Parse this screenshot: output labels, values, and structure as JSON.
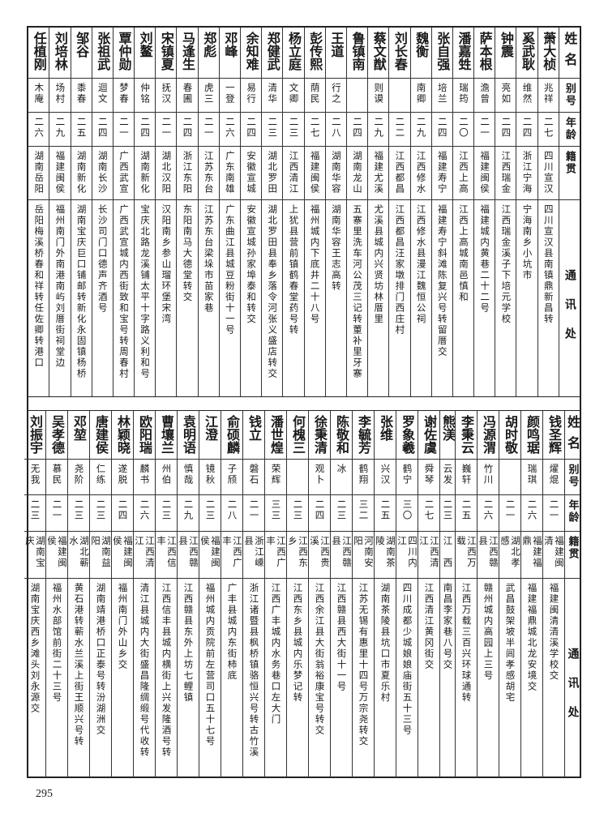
{
  "headers": {
    "name": "姓名",
    "alias": "别号",
    "age": "年龄",
    "native": "籍贯",
    "address": "通讯处"
  },
  "top_section": [
    {
      "name": "萧大桢",
      "alias": "兆祥",
      "age": "二七",
      "native": "四川宣汉",
      "address": "四川宣汉县南镇鼎新昌转"
    },
    {
      "name": "奚武耿",
      "alias": "维然",
      "age": "二四",
      "native": "浙江宁海",
      "address": "宁海南乡小坑市"
    },
    {
      "name": "钟震",
      "alias": "亮如",
      "age": "二四",
      "native": "江西瑞金",
      "address": "江西瑞金溪子下培元学校"
    },
    {
      "name": "萨本根",
      "alias": "澹曾",
      "age": "二一",
      "native": "福建闽侯",
      "address": "福建城内黄巷二十二号"
    },
    {
      "name": "潘嘉甡",
      "alias": "瑞筠",
      "age": "二〇",
      "native": "江西上高",
      "address": "江西上高城南邑慎和"
    },
    {
      "name": "张自强",
      "alias": "培兰",
      "age": "二四",
      "native": "福建寿宁",
      "address": "福建寿宁斜滩陈复兴号转留厝交"
    },
    {
      "name": "魏衡",
      "alias": "南卿",
      "age": "二九",
      "native": "江西修水",
      "address": "江西修水县漫江魏恒公祠"
    },
    {
      "name": "刘长春",
      "alias": "",
      "age": "二二",
      "native": "江西都昌",
      "address": "江西都昌汪家墩排门西庄村"
    },
    {
      "name": "蔡文猷",
      "alias": "则谟",
      "age": "二九",
      "native": "福建尤溪",
      "address": "尤溪县城内兴贤坊林厝里"
    },
    {
      "name": "鲁镇南",
      "alias": "",
      "age": "二四",
      "native": "湖南龙山",
      "address": "五寨里洗车河公茂三记转董补里牙寨"
    },
    {
      "name": "王道",
      "alias": "行之",
      "age": "二八",
      "native": "湖南华容",
      "address": "湖南华容王志高转"
    },
    {
      "name": "彭传熙",
      "alias": "荫民",
      "age": "二七",
      "native": "福建闽侯",
      "address": "福州城内下底井二十八号"
    },
    {
      "name": "杨立庭",
      "alias": "文卿",
      "age": "二三",
      "native": "江西清江",
      "address": "上犹县营前镇鹤春堂药号转"
    },
    {
      "name": "郑健武",
      "alias": "清华",
      "age": "二三",
      "native": "湖北罗田",
      "address": "湖北罗田县奉乡落令河张义盛店转交"
    },
    {
      "name": "余知难",
      "alias": "易行",
      "age": "二四",
      "native": "安徽宣城",
      "address": "安徽宣城孙家埠泰和转交"
    },
    {
      "name": "邓峰",
      "alias": "一登",
      "age": "二六",
      "native": "广东南雄",
      "address": "广东曲江县城豆粉街十一号"
    },
    {
      "name": "郑彪",
      "alias": "虎三",
      "age": "二一",
      "native": "江苏东台",
      "address": "江苏东台梁垛市苗家巷"
    },
    {
      "name": "马逢生",
      "alias": "春圃",
      "age": "二四",
      "native": "浙江东阳",
      "address": "东阳南马大德堂转交"
    },
    {
      "name": "宋镇夏",
      "alias": "抚汉",
      "age": "二一",
      "native": "湖北汉阳",
      "address": "汉阳南乡参山瑠环堡宋湾"
    },
    {
      "name": "刘鳌",
      "alias": "仲铭",
      "age": "二四",
      "native": "湖南新化",
      "address": "宝庆北路龙溪铺太平十字路义利和号"
    },
    {
      "name": "覃仲勋",
      "alias": "梦春",
      "age": "二一",
      "native": "广西武宣",
      "address": "广西武宣城内西街致和宝号转周春村"
    },
    {
      "name": "张祖武",
      "alias": "迴文",
      "age": "二四",
      "native": "湖南长沙",
      "address": "长沙司门口德声齐酒号"
    },
    {
      "name": "邹谷",
      "alias": "黍春",
      "age": "二五",
      "native": "湖南新化",
      "address": "湖南宝庆巨口铺邮转新化永固镇杨桥"
    },
    {
      "name": "刘培林",
      "alias": "场村",
      "age": "二九",
      "native": "福建闽侯",
      "address": "福州南门外南港南屿刘厝街祠堂边"
    },
    {
      "name": "任植刚",
      "alias": "木庵",
      "age": "二六",
      "native": "湖南岳阳",
      "address": "岳阳梅溪桥春和祥转任佐卿转港口"
    }
  ],
  "bottom_section": [
    {
      "name": "钱圣辉",
      "alias": "燿焜",
      "age": "二一",
      "native": "福建闽清",
      "address": "福建闽清清溪学校交"
    },
    {
      "name": "颜鸣琚",
      "alias": "瑞琪",
      "age": "二六",
      "native": "福建福鼎",
      "address": "福建福鼎城北龙安境交"
    },
    {
      "name": "胡时敬",
      "alias": "",
      "age": "二一",
      "native": "湖北孝感",
      "address": "武昌鼓架坡半闾孝感胡宅"
    },
    {
      "name": "冯源渭",
      "alias": "竹川",
      "age": "二六",
      "native": "江西赣县",
      "address": "赣州城内高园上三号"
    },
    {
      "name": "李秉云",
      "alias": "巍轩",
      "age": "二五",
      "native": "江西万载",
      "address": "江西万载三百兴环球通转"
    },
    {
      "name": "熊渼",
      "alias": "云发",
      "age": "二三",
      "native": "江　西",
      "address": "南昌李家巷八号交"
    },
    {
      "name": "谢佐虞",
      "alias": "舜琴",
      "age": "二七",
      "native": "江西清江",
      "address": "江西清江黄冈街交"
    },
    {
      "name": "罗象羲",
      "alias": "鹤宁",
      "age": "三〇",
      "native": "四川内江",
      "address": "四川成都少城娘娘庙街五十三号"
    },
    {
      "name": "张维",
      "alias": "兴汉",
      "age": "二五",
      "native": "湖南茶陵",
      "address": "湖南茶陵县坑口市夏乐村"
    },
    {
      "name": "李毓芳",
      "alias": "鹤翔",
      "age": "三二",
      "native": "河南安阳",
      "address": "江苏无锡有惠里十四号万宗尧转交"
    },
    {
      "name": "陈敬和",
      "alias": "冰",
      "age": "二三",
      "native": "江西赣县",
      "address": "江西赣县西大街十一号"
    },
    {
      "name": "徐秉清",
      "alias": "观卜",
      "age": "二四",
      "native": "江西贵溪",
      "address": "江西余江县大街翁裕康宝号转交"
    },
    {
      "name": "何槐三",
      "alias": "",
      "age": "二三",
      "native": "江西东乡",
      "address": "江西东乡县城内乐梦记转"
    },
    {
      "name": "潘世煌",
      "alias": "荣辉",
      "age": "三三",
      "native": "江西广丰",
      "address": "江西广丰城内水务巷口左大门"
    },
    {
      "name": "钱立",
      "alias": "磐石",
      "age": "二一",
      "native": "浙江嵊县",
      "address": "浙江诸暨县枫桥镇骆恒兴号转古竹溪"
    },
    {
      "name": "俞硕麟",
      "alias": "子颀",
      "age": "二八",
      "native": "江西广丰",
      "address": "广丰县城内东街柿底"
    },
    {
      "name": "江澄",
      "alias": "镜秋",
      "age": "二三",
      "native": "福建闽侯",
      "address": "福州城内贡院前左营司口五十七号"
    },
    {
      "name": "袁明语",
      "alias": "慎哉",
      "age": "二九",
      "native": "江西赣县",
      "address": "江西赣县东外上坊七鲤镇"
    },
    {
      "name": "曹壤兰",
      "alias": "州伯",
      "age": "二三",
      "native": "江西信丰",
      "address": "江西信丰县城内横街上兴发隆酒号转"
    },
    {
      "name": "欧阳瑞",
      "alias": "麟书",
      "age": "二六",
      "native": "江西清江",
      "address": "清江县城内大街盛昌隆绸缎号代收转"
    },
    {
      "name": "林颖晓",
      "alias": "遂脱",
      "age": "二四",
      "native": "福建闽侯",
      "address": "福州南门外山乡交"
    },
    {
      "name": "唐建侯",
      "alias": "仁练",
      "age": "二三",
      "native": "湖南益阳",
      "address": "湖南靖港桥口正泰号转汾湖洲交"
    },
    {
      "name": "邓堃",
      "alias": "尧阶",
      "age": "二三",
      "native": "湖北蕲水",
      "address": "黄石港转蕲水兰溪上街王顺兴号转"
    },
    {
      "name": "吴孝德",
      "alias": "慕民",
      "age": "二一",
      "native": "福建闽侯",
      "address": "福州水部馆前街二十三号"
    },
    {
      "name": "刘振宇",
      "alias": "无我",
      "age": "二三",
      "native": "湖南宝庆",
      "address": "湖南宝庆西乡滩头刘永源交"
    }
  ],
  "page_number": "295"
}
